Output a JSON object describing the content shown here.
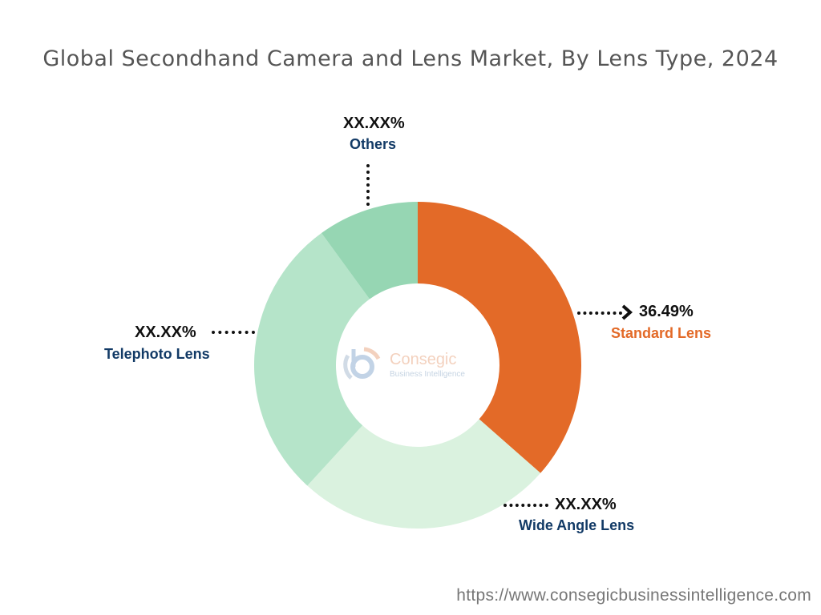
{
  "chart_data": {
    "type": "pie",
    "variant": "donut",
    "title": "Global Secondhand Camera and Lens Market, By Lens Type, 2024",
    "slices": [
      {
        "name": "Standard Lens",
        "value": 36.49,
        "label": "36.49%",
        "color": "#E36A28"
      },
      {
        "name": "Wide Angle Lens",
        "value": 25.3,
        "label": "XX.XX%",
        "color": "#DAF2DF"
      },
      {
        "name": "Telephoto Lens",
        "value": 28.2,
        "label": "XX.XX%",
        "color": "#B5E4C9"
      },
      {
        "name": "Others",
        "value": 10.01,
        "label": "XX.XX%",
        "color": "#96D6B3"
      }
    ]
  },
  "logo": {
    "name": "Consegic",
    "tagline": "Business Intelligence"
  },
  "footer_url": "https://www.consegicbusinessintelligence.com"
}
